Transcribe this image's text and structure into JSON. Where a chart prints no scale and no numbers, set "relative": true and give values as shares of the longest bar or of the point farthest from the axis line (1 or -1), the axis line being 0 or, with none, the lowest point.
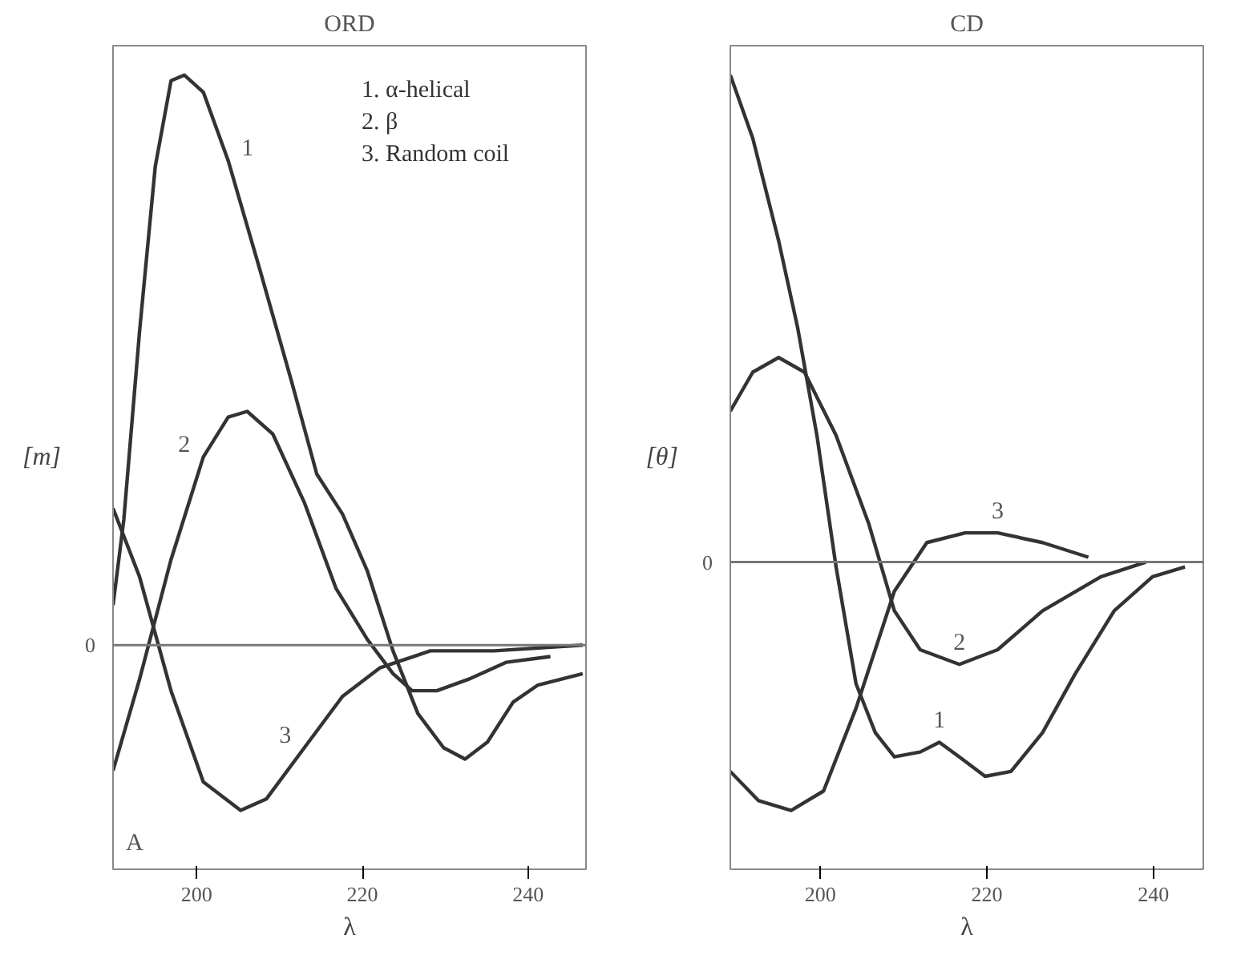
{
  "chart_data": [
    {
      "type": "line",
      "title": "ORD",
      "xlabel": "λ",
      "ylabel": "[m]",
      "relative": true,
      "xlim": [
        189.9,
        247
      ],
      "xticks": [
        200,
        220,
        240
      ],
      "grid": false,
      "line_style": "solid",
      "marker": "none",
      "series": [
        {
          "color": "#333333",
          "x": [
            189.9,
            191.2,
            193.1,
            195,
            196.9,
            198.5,
            200.8,
            203.8,
            207.6,
            211.5,
            214.5,
            217.6,
            220.6,
            223.7,
            226.7,
            229.8,
            232.4,
            235.1,
            238.2,
            241.2,
            246.6
          ],
          "values": [
            0.07,
            0.22,
            0.55,
            0.84,
            0.99,
            1.0,
            0.97,
            0.85,
            0.66,
            0.46,
            0.3,
            0.23,
            0.13,
            -0.01,
            -0.12,
            -0.18,
            -0.2,
            -0.17,
            -0.1,
            -0.07,
            -0.05
          ]
        },
        {
          "color": "#333333",
          "x": [
            189.9,
            193.1,
            196.9,
            200.8,
            203.8,
            206.1,
            209.2,
            213,
            216.8,
            220.6,
            223.7,
            226,
            229,
            232.8,
            237.4,
            242.7
          ],
          "values": [
            -0.22,
            -0.06,
            0.15,
            0.33,
            0.4,
            0.41,
            0.37,
            0.25,
            0.1,
            0.01,
            -0.05,
            -0.08,
            -0.08,
            -0.06,
            -0.03,
            -0.02
          ]
        },
        {
          "color": "#333333",
          "x": [
            189.9,
            193.1,
            196.9,
            200.8,
            205.3,
            208.4,
            213,
            217.6,
            222.1,
            228.2,
            235.9,
            246.6
          ],
          "values": [
            0.24,
            0.12,
            -0.08,
            -0.24,
            -0.29,
            -0.27,
            -0.18,
            -0.09,
            -0.04,
            -0.01,
            -0.01,
            0.0
          ]
        }
      ],
      "ref_lines": [
        {
          "axis": "y",
          "value": 0,
          "label": "0",
          "color": "#777777"
        }
      ],
      "annotations": [
        "1. α-helical",
        "2. β",
        "3. Random coil",
        {
          "text": "1",
          "x": 203.8,
          "y": 0.85
        },
        {
          "text": "2",
          "x": 200.8,
          "y": 0.33
        },
        {
          "text": "3",
          "x": 213,
          "y": -0.18
        },
        "A"
      ]
    },
    {
      "type": "line",
      "title": "CD",
      "xlabel": "λ",
      "ylabel": "[θ]",
      "relative": true,
      "xlim": [
        189.2,
        246
      ],
      "xticks": [
        200,
        220,
        240
      ],
      "grid": false,
      "line_style": "solid",
      "marker": "none",
      "series": [
        {
          "color": "#333333",
          "x": [
            189.2,
            191.9,
            195,
            197.3,
            199.6,
            201.9,
            204.3,
            206.6,
            208.9,
            212,
            214.3,
            216.7,
            219.8,
            222.9,
            226.7,
            230.6,
            235.3,
            239.9,
            243.8
          ],
          "values": [
            1.0,
            0.87,
            0.66,
            0.48,
            0.26,
            -0.01,
            -0.25,
            -0.35,
            -0.4,
            -0.39,
            -0.37,
            -0.4,
            -0.44,
            -0.43,
            -0.35,
            -0.23,
            -0.1,
            -0.03,
            -0.01
          ]
        },
        {
          "color": "#333333",
          "x": [
            189.2,
            191.9,
            195,
            198.1,
            201.9,
            205.8,
            208.9,
            212,
            216.7,
            221.3,
            226.7,
            233.7,
            239.1
          ],
          "values": [
            0.31,
            0.39,
            0.42,
            0.39,
            0.26,
            0.08,
            -0.1,
            -0.18,
            -0.21,
            -0.18,
            -0.1,
            -0.03,
            0.0
          ]
        },
        {
          "color": "#333333",
          "x": [
            189.2,
            192.6,
            196.5,
            200.4,
            204.3,
            208.9,
            212.8,
            217.4,
            221.3,
            226.7,
            232.2
          ],
          "values": [
            -0.43,
            -0.49,
            -0.51,
            -0.47,
            -0.3,
            -0.06,
            0.04,
            0.06,
            0.06,
            0.04,
            0.01
          ]
        }
      ],
      "ref_lines": [
        {
          "axis": "y",
          "value": 0,
          "label": "0",
          "color": "#777777"
        }
      ],
      "annotations": [
        {
          "text": "3",
          "x": 221.3,
          "y": 0.06
        },
        {
          "text": "2",
          "x": 216.7,
          "y": -0.21
        },
        {
          "text": "1",
          "x": 214.3,
          "y": -0.37
        }
      ]
    }
  ]
}
